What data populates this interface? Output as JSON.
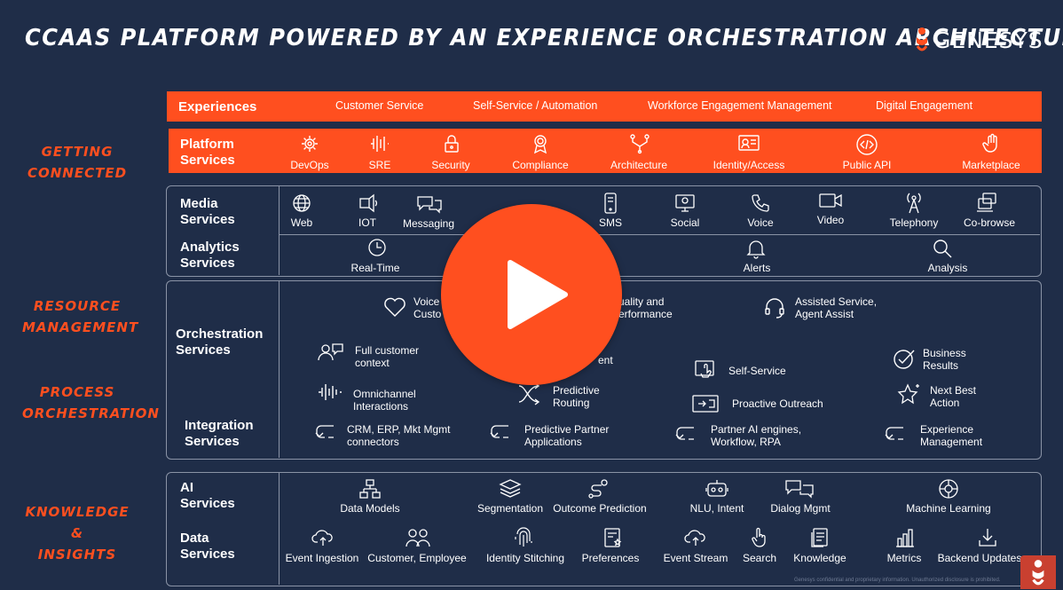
{
  "title": "CCAAS PLATFORM POWERED BY AN EXPERIENCE ORCHESTRATION ARCHITECTURE",
  "logo_text": "GENESYS",
  "side_labels": {
    "getting_connected": [
      "GETTING",
      "CONNECTED"
    ],
    "resource_management": [
      "RESOURCE",
      "MANAGEMENT"
    ],
    "process_orchestration": [
      "PROCESS",
      "ORCHESTRATION"
    ],
    "knowledge_insights": [
      "KNOWLEDGE &",
      "INSIGHTS"
    ]
  },
  "experiences": {
    "title": "Experiences",
    "items": [
      "Customer Service",
      "Self-Service / Automation",
      "Workforce Engagement Management",
      "Digital Engagement"
    ]
  },
  "platform": {
    "title": [
      "Platform",
      "Services"
    ],
    "items": [
      "DevOps",
      "SRE",
      "Security",
      "Compliance",
      "Architecture",
      "Identity/Access",
      "Public API",
      "Marketplace"
    ]
  },
  "media": {
    "title": [
      "Media",
      "Services"
    ],
    "items": [
      "Web",
      "IOT",
      "Messaging",
      "SMS",
      "Social",
      "Voice",
      "Video",
      "Telephony",
      "Co-browse"
    ]
  },
  "analytics": {
    "title": [
      "Analytics",
      "Services"
    ],
    "items": [
      "Real-Time",
      "Alerts",
      "Analysis"
    ]
  },
  "orchestration": {
    "title": [
      "Orchestration",
      "Services"
    ],
    "items": {
      "voice": [
        "Voice",
        "Custo"
      ],
      "quality": [
        "uality and",
        "erformance"
      ],
      "assisted": [
        "Assisted Service,",
        "Agent Assist"
      ],
      "full_context": [
        "Full customer",
        "context"
      ],
      "ent": "ent",
      "self_service": "Self-Service",
      "business": [
        "Business",
        "Results"
      ],
      "omnichannel": [
        "Omnichannel",
        "Interactions"
      ],
      "predictive_routing": [
        "Predictive",
        "Routing"
      ],
      "proactive": "Proactive Outreach",
      "next_best": [
        "Next Best",
        "Action"
      ]
    }
  },
  "integration": {
    "title": [
      "Integration",
      "Services"
    ],
    "items": [
      [
        "CRM, ERP, Mkt Mgmt",
        "connectors"
      ],
      [
        "Predictive Partner",
        "Applications"
      ],
      [
        "Partner AI engines,",
        "Workflow, RPA"
      ],
      [
        "Experience",
        "Management"
      ]
    ]
  },
  "ai": {
    "title": [
      "AI",
      "Services"
    ],
    "items": [
      "Data Models",
      "Segmentation",
      "Outcome Prediction",
      "NLU, Intent",
      "Dialog Mgmt",
      "Machine Learning"
    ]
  },
  "data": {
    "title": [
      "Data",
      "Services"
    ],
    "items": [
      "Event Ingestion",
      "Customer, Employee",
      "Identity Stitching",
      "Preferences",
      "Event Stream",
      "Search",
      "Knowledge",
      "Metrics",
      "Backend Updates"
    ]
  },
  "footnote": "Genesys confidential and proprietary information. Unauthorized disclosure is prohibited.",
  "colors": {
    "background": "#1f2d48",
    "accent": "#ff4f1f",
    "border": "#8a93a6"
  },
  "play_icon": "play-icon"
}
